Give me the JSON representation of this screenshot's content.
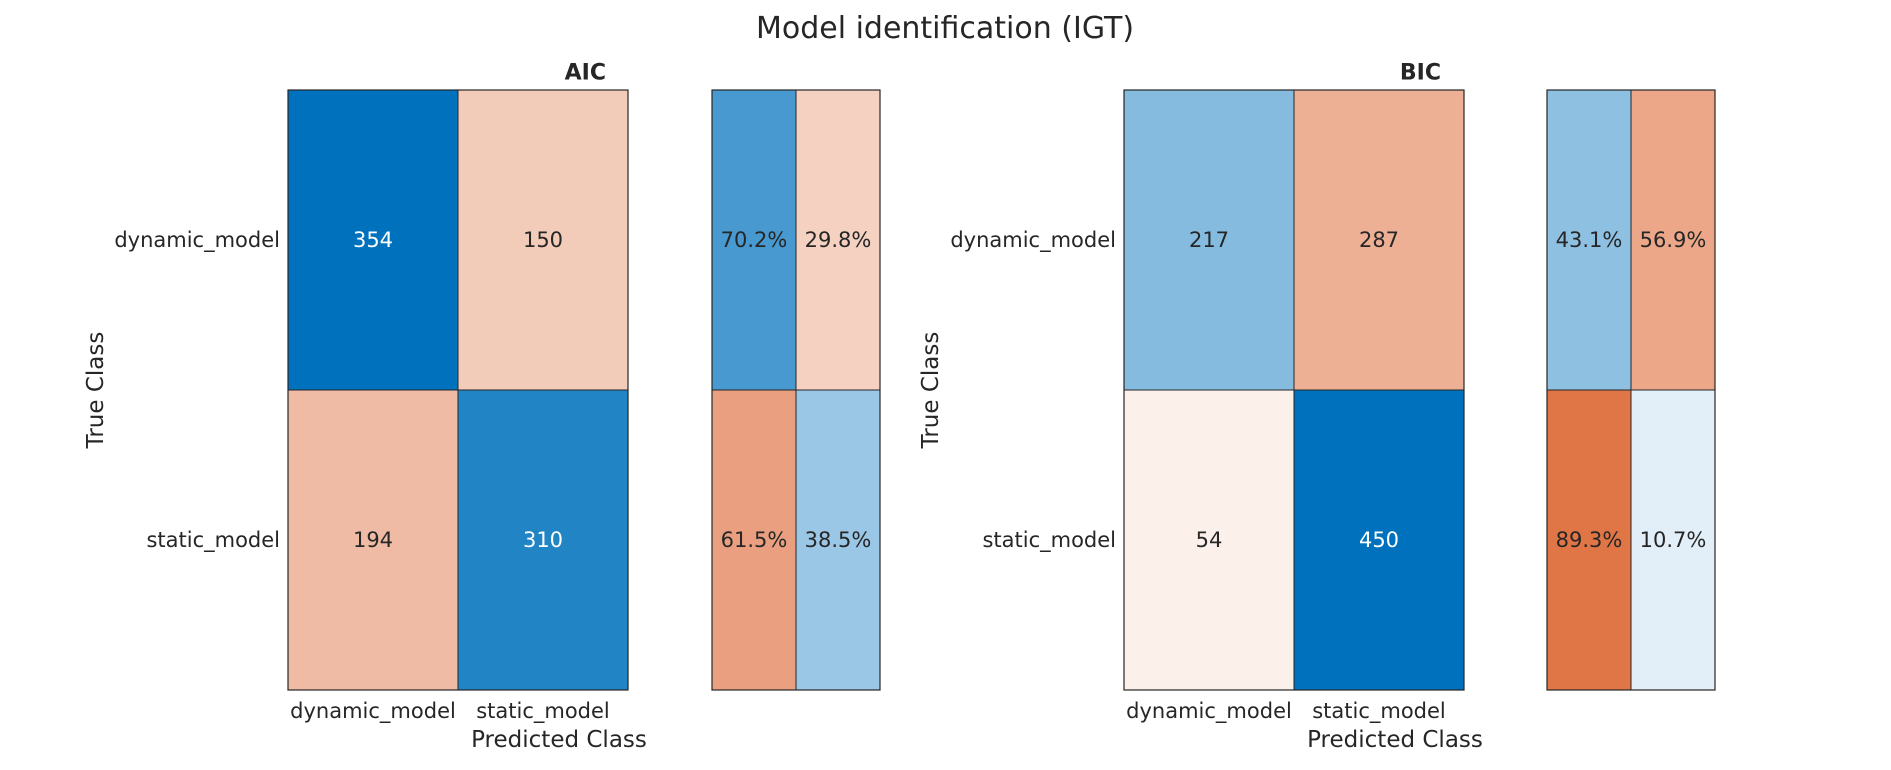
{
  "figure": {
    "title": "Model identification (IGT)"
  },
  "colors": {
    "blue": "#0072BD",
    "orange": "#D95319",
    "white": "#FFFFFF",
    "border": "#262626",
    "text": "#262626"
  },
  "chart_data": [
    {
      "type": "heatmap",
      "title": "AIC",
      "xlabel": "Predicted Class",
      "ylabel": "True Class",
      "classes": [
        "dynamic_model",
        "static_model"
      ],
      "matrix": [
        [
          354,
          150
        ],
        [
          194,
          310
        ]
      ],
      "row_summary": {
        "labels": [
          [
            "70.2%",
            "29.8%"
          ],
          [
            "61.5%",
            "38.5%"
          ]
        ],
        "values": [
          [
            70.2,
            29.8
          ],
          [
            61.5,
            38.5
          ]
        ]
      }
    },
    {
      "type": "heatmap",
      "title": "BIC",
      "xlabel": "Predicted Class",
      "ylabel": "True Class",
      "classes": [
        "dynamic_model",
        "static_model"
      ],
      "matrix": [
        [
          217,
          287
        ],
        [
          54,
          450
        ]
      ],
      "row_summary": {
        "labels": [
          [
            "43.1%",
            "56.9%"
          ],
          [
            "89.3%",
            "10.7%"
          ]
        ],
        "values": [
          [
            43.1,
            56.9
          ],
          [
            89.3,
            10.7
          ]
        ]
      }
    }
  ]
}
